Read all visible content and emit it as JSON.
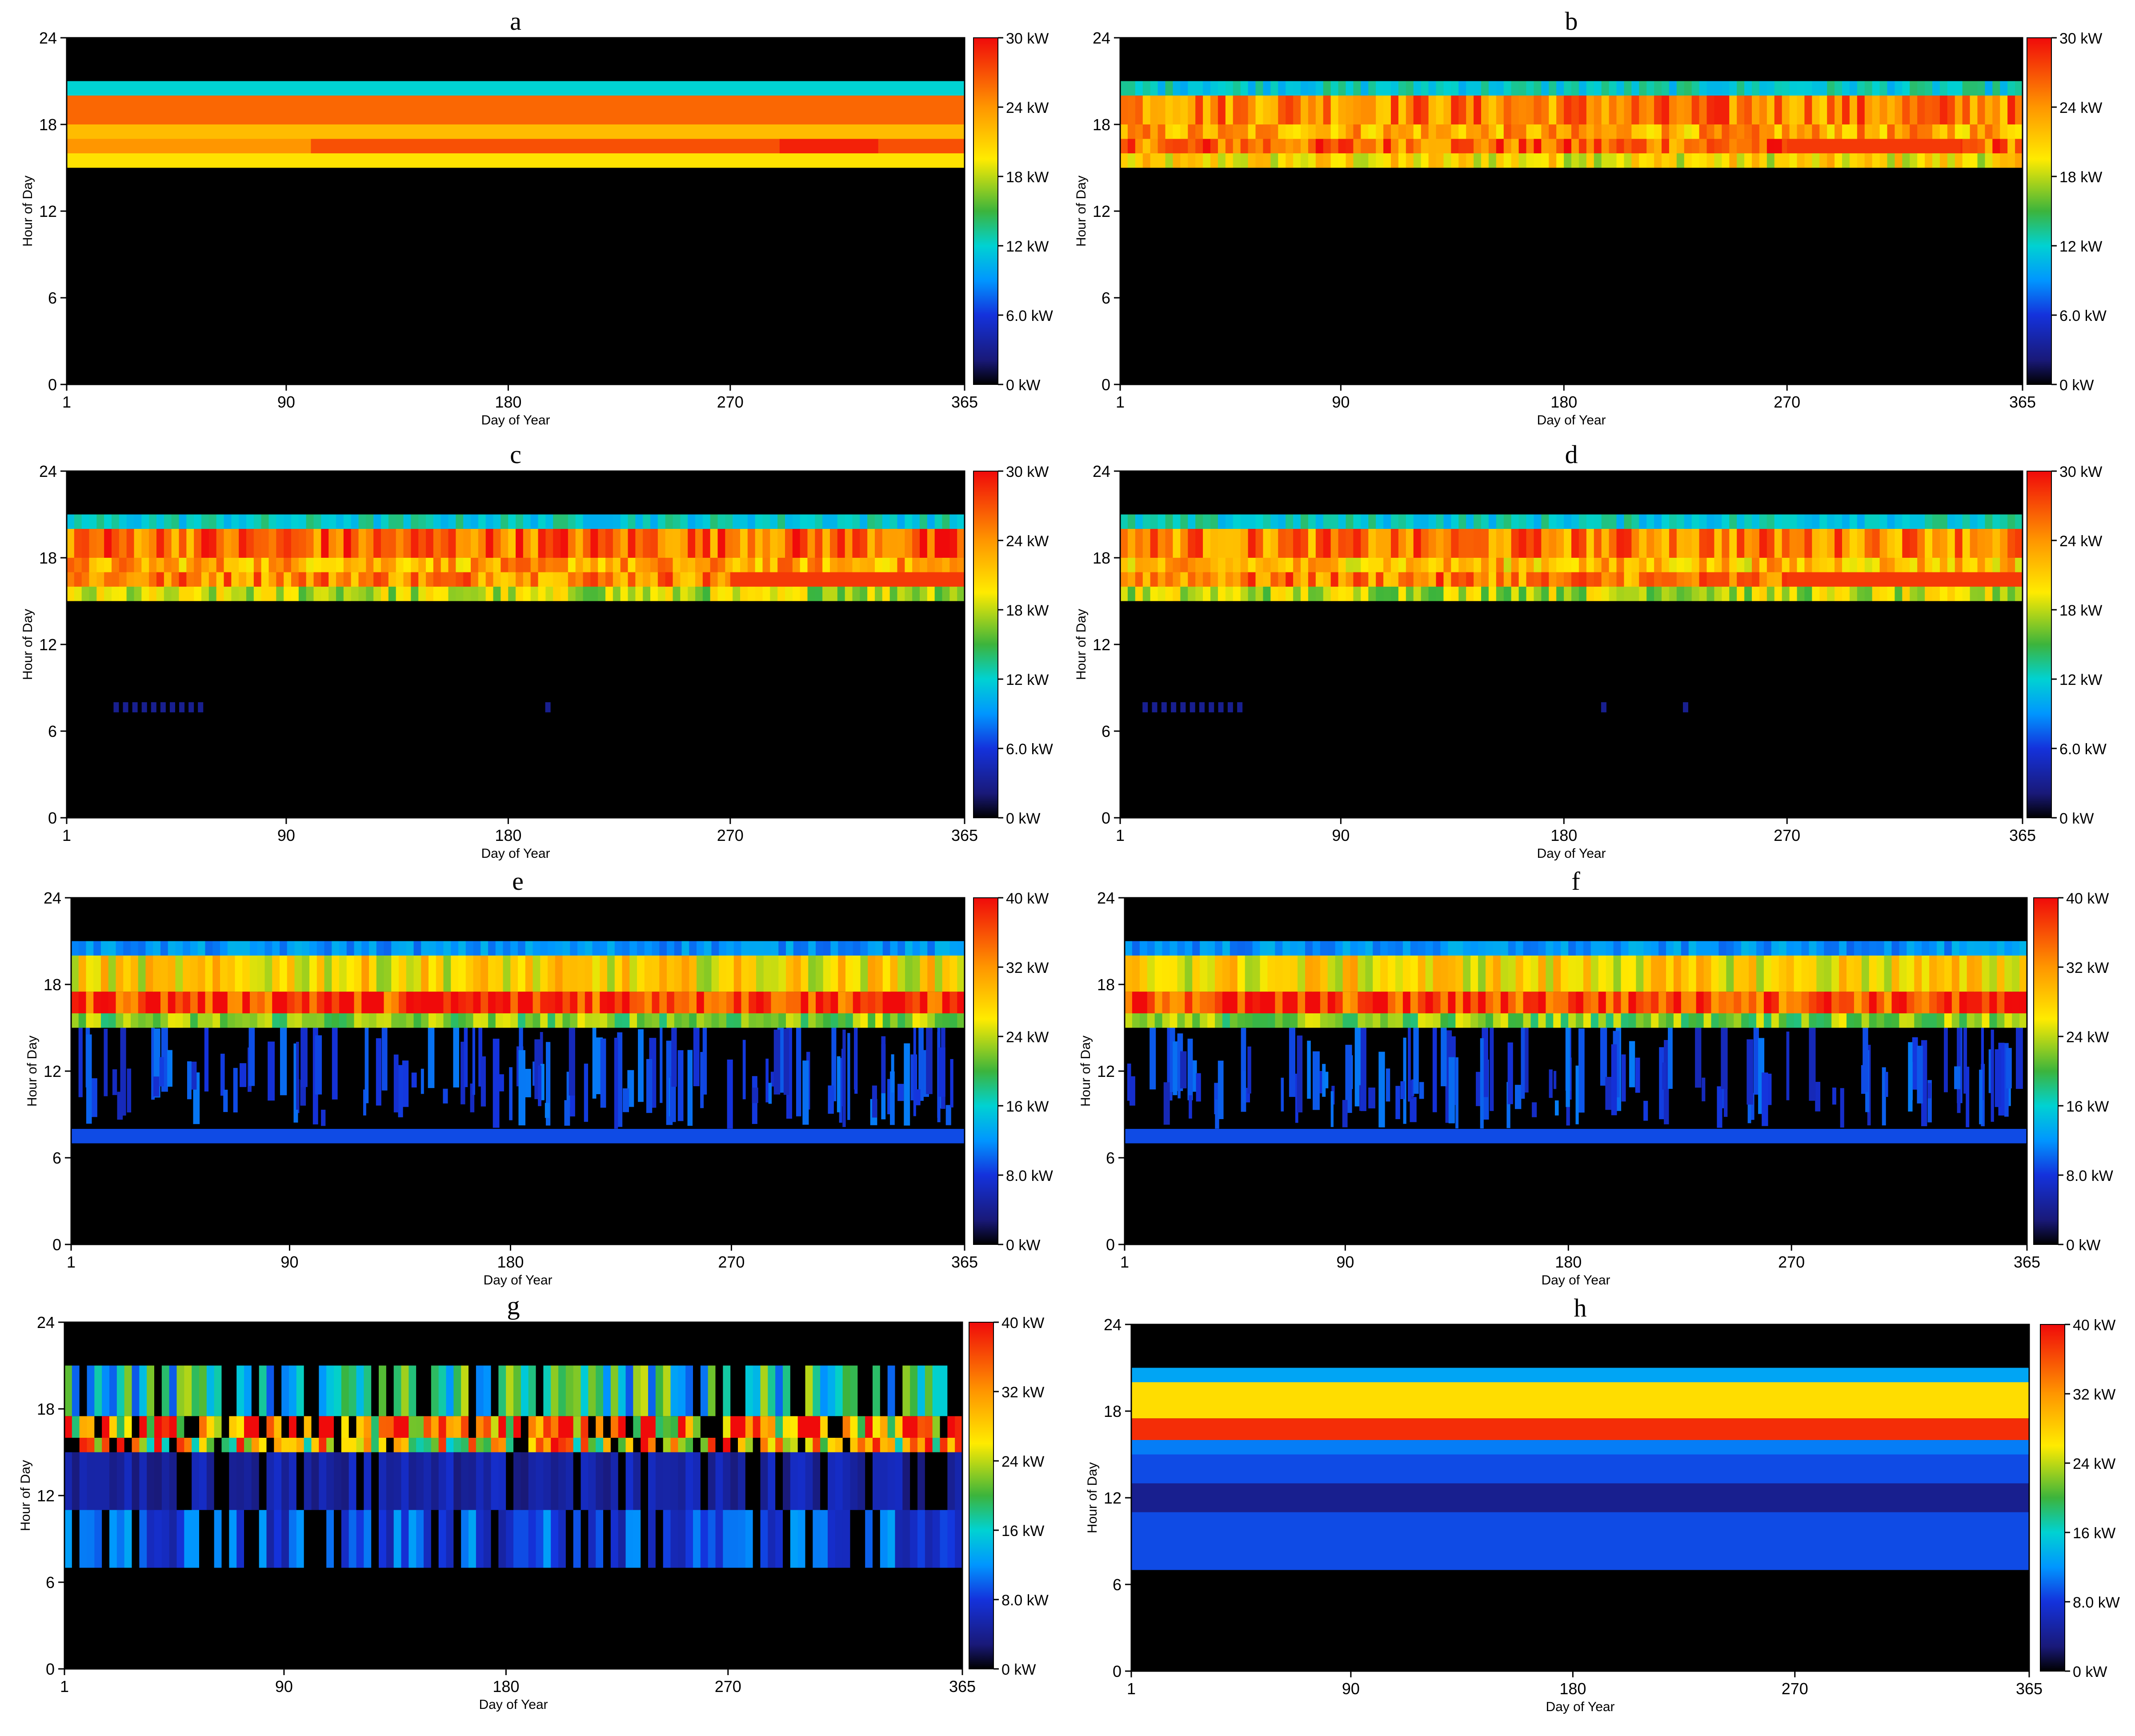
{
  "figure": {
    "panels": [
      "a",
      "b",
      "c",
      "d",
      "e",
      "f",
      "g",
      "h"
    ]
  },
  "chart_data": [
    {
      "id": "a",
      "type": "heatmap",
      "title": "a",
      "xlabel": "Day of Year",
      "ylabel": "Hour of Day",
      "xlim": [
        1,
        365
      ],
      "ylim": [
        0,
        24
      ],
      "xticks": [
        "1",
        "90",
        "180",
        "270",
        "365"
      ],
      "yticks": [
        "0",
        "6",
        "12",
        "18",
        "24"
      ],
      "colorbar": {
        "min": 0,
        "max": 30,
        "labels": [
          "0 kW",
          "6.0 kW",
          "12 kW",
          "18 kW",
          "24 kW",
          "30 kW"
        ]
      },
      "pattern": "steady",
      "bands": [
        {
          "from": 15,
          "to": 16,
          "value": 20
        },
        {
          "from": 16,
          "to": 17,
          "value": 24
        },
        {
          "from": 17,
          "to": 18,
          "value": 22
        },
        {
          "from": 18,
          "to": 20,
          "value": 26
        },
        {
          "from": 20,
          "to": 21,
          "value": 12
        }
      ],
      "segments": [
        {
          "dayStart": 100,
          "dayEnd": 365,
          "from": 16,
          "to": 17,
          "value": 27
        },
        {
          "dayStart": 290,
          "dayEnd": 330,
          "from": 16,
          "to": 17,
          "value": 29
        }
      ],
      "speckles": []
    },
    {
      "id": "b",
      "type": "heatmap",
      "title": "b",
      "xlabel": "Day of Year",
      "ylabel": "Hour of Day",
      "xlim": [
        1,
        365
      ],
      "ylim": [
        0,
        24
      ],
      "xticks": [
        "1",
        "90",
        "180",
        "270",
        "365"
      ],
      "yticks": [
        "0",
        "6",
        "12",
        "18",
        "24"
      ],
      "colorbar": {
        "min": 0,
        "max": 30,
        "labels": [
          "0 kW",
          "6.0 kW",
          "12 kW",
          "18 kW",
          "24 kW",
          "30 kW"
        ]
      },
      "pattern": "noisy",
      "bands": [
        {
          "from": 15,
          "to": 16,
          "value": 20
        },
        {
          "from": 16,
          "to": 17,
          "value": 26
        },
        {
          "from": 17,
          "to": 18,
          "value": 23
        },
        {
          "from": 18,
          "to": 20,
          "value": 25
        },
        {
          "from": 20,
          "to": 21,
          "value": 12
        }
      ],
      "segments": [
        {
          "dayStart": 270,
          "dayEnd": 340,
          "from": 16,
          "to": 17,
          "value": 28
        }
      ],
      "speckles": []
    },
    {
      "id": "c",
      "type": "heatmap",
      "title": "c",
      "xlabel": "Day of Year",
      "ylabel": "Hour of Day",
      "xlim": [
        1,
        365
      ],
      "ylim": [
        0,
        24
      ],
      "xticks": [
        "1",
        "90",
        "180",
        "270",
        "365"
      ],
      "yticks": [
        "0",
        "6",
        "12",
        "18",
        "24"
      ],
      "colorbar": {
        "min": 0,
        "max": 30,
        "labels": [
          "0 kW",
          "6.0 kW",
          "12 kW",
          "18 kW",
          "24 kW",
          "30 kW"
        ]
      },
      "pattern": "patchy",
      "bands": [
        {
          "from": 15,
          "to": 16,
          "value": 18
        },
        {
          "from": 16,
          "to": 17,
          "value": 25
        },
        {
          "from": 17,
          "to": 18,
          "value": 23
        },
        {
          "from": 18,
          "to": 20,
          "value": 26
        },
        {
          "from": 20,
          "to": 21,
          "value": 12
        }
      ],
      "segments": [
        {
          "dayStart": 270,
          "dayEnd": 365,
          "from": 16,
          "to": 17,
          "value": 28
        }
      ],
      "speckles": [
        {
          "dayStart": 20,
          "dayEnd": 58,
          "from": 7.3,
          "to": 8,
          "value": 3
        },
        {
          "dayStart": 195,
          "dayEnd": 200,
          "from": 7.3,
          "to": 8,
          "value": 3
        }
      ]
    },
    {
      "id": "d",
      "type": "heatmap",
      "title": "d",
      "xlabel": "Day of Year",
      "ylabel": "Hour of Day",
      "xlim": [
        1,
        365
      ],
      "ylim": [
        0,
        24
      ],
      "xticks": [
        "1",
        "90",
        "180",
        "270",
        "365"
      ],
      "yticks": [
        "0",
        "6",
        "12",
        "18",
        "24"
      ],
      "colorbar": {
        "min": 0,
        "max": 30,
        "labels": [
          "0 kW",
          "6.0 kW",
          "12 kW",
          "18 kW",
          "24 kW",
          "30 kW"
        ]
      },
      "pattern": "patchy-noisy",
      "bands": [
        {
          "from": 15,
          "to": 16,
          "value": 18
        },
        {
          "from": 16,
          "to": 17,
          "value": 25
        },
        {
          "from": 17,
          "to": 18,
          "value": 22
        },
        {
          "from": 18,
          "to": 20,
          "value": 25
        },
        {
          "from": 20,
          "to": 21,
          "value": 12
        }
      ],
      "segments": [
        {
          "dayStart": 270,
          "dayEnd": 365,
          "from": 16,
          "to": 17,
          "value": 28
        }
      ],
      "speckles": [
        {
          "dayStart": 10,
          "dayEnd": 52,
          "from": 7.3,
          "to": 8,
          "value": 3
        },
        {
          "dayStart": 195,
          "dayEnd": 200,
          "from": 7.3,
          "to": 8,
          "value": 3
        },
        {
          "dayStart": 228,
          "dayEnd": 230,
          "from": 7.3,
          "to": 8,
          "value": 3
        }
      ]
    },
    {
      "id": "e",
      "type": "heatmap",
      "title": "e",
      "xlabel": "Day of Year",
      "ylabel": "Hour of Day",
      "xlim": [
        1,
        365
      ],
      "ylim": [
        0,
        24
      ],
      "xticks": [
        "1",
        "90",
        "180",
        "270",
        "365"
      ],
      "yticks": [
        "0",
        "6",
        "12",
        "18",
        "24"
      ],
      "colorbar": {
        "min": 0,
        "max": 40,
        "labels": [
          "0 kW",
          "8.0 kW",
          "16 kW",
          "24 kW",
          "32 kW",
          "40 kW"
        ]
      },
      "pattern": "blue-scatter",
      "bands": [
        {
          "from": 15,
          "to": 16,
          "value": 22
        },
        {
          "from": 16,
          "to": 17.5,
          "value": 38
        },
        {
          "from": 17.5,
          "to": 20,
          "value": 27
        },
        {
          "from": 20,
          "to": 21,
          "value": 12
        }
      ],
      "segments": [],
      "speckles": [
        {
          "dayStart": 1,
          "dayEnd": 365,
          "from": 7,
          "to": 8,
          "value": 9
        }
      ]
    },
    {
      "id": "f",
      "type": "heatmap",
      "title": "f",
      "xlabel": "Day of Year",
      "ylabel": "Hour of Day",
      "xlim": [
        1,
        365
      ],
      "ylim": [
        0,
        24
      ],
      "xticks": [
        "1",
        "90",
        "180",
        "270",
        "365"
      ],
      "yticks": [
        "0",
        "6",
        "12",
        "18",
        "24"
      ],
      "colorbar": {
        "min": 0,
        "max": 40,
        "labels": [
          "0 kW",
          "8.0 kW",
          "16 kW",
          "24 kW",
          "32 kW",
          "40 kW"
        ]
      },
      "pattern": "blue-scatter-noisy",
      "bands": [
        {
          "from": 15,
          "to": 16,
          "value": 22
        },
        {
          "from": 16,
          "to": 17.5,
          "value": 37
        },
        {
          "from": 17.5,
          "to": 20,
          "value": 27
        },
        {
          "from": 20,
          "to": 21,
          "value": 12
        }
      ],
      "segments": [],
      "speckles": [
        {
          "dayStart": 1,
          "dayEnd": 365,
          "from": 7,
          "to": 8,
          "value": 9
        }
      ]
    },
    {
      "id": "g",
      "type": "heatmap",
      "title": "g",
      "xlabel": "Day of Year",
      "ylabel": "Hour of Day",
      "xlim": [
        1,
        365
      ],
      "ylim": [
        0,
        24
      ],
      "xticks": [
        "1",
        "90",
        "180",
        "270",
        "365"
      ],
      "yticks": [
        "0",
        "6",
        "12",
        "18",
        "24"
      ],
      "colorbar": {
        "min": 0,
        "max": 40,
        "labels": [
          "0 kW",
          "8.0 kW",
          "16 kW",
          "24 kW",
          "32 kW",
          "40 kW"
        ]
      },
      "pattern": "chaotic",
      "bands": [
        {
          "from": 7,
          "to": 11,
          "value": 9
        },
        {
          "from": 11,
          "to": 15,
          "value": 5
        },
        {
          "from": 15,
          "to": 16,
          "value": 28
        },
        {
          "from": 16,
          "to": 17.5,
          "value": 33
        },
        {
          "from": 17.5,
          "to": 21,
          "value": 17
        }
      ],
      "segments": [],
      "speckles": []
    },
    {
      "id": "h",
      "type": "heatmap",
      "title": "h",
      "xlabel": "Day of Year",
      "ylabel": "Hour of Day",
      "xlim": [
        1,
        365
      ],
      "ylim": [
        0,
        24
      ],
      "xticks": [
        "1",
        "90",
        "180",
        "270",
        "365"
      ],
      "yticks": [
        "0",
        "6",
        "12",
        "18",
        "24"
      ],
      "colorbar": {
        "min": 0,
        "max": 40,
        "labels": [
          "0 kW",
          "8.0 kW",
          "16 kW",
          "24 kW",
          "32 kW",
          "40 kW"
        ]
      },
      "pattern": "uniform",
      "bands": [
        {
          "from": 7,
          "to": 11,
          "value": 9
        },
        {
          "from": 11,
          "to": 13,
          "value": 4
        },
        {
          "from": 13,
          "to": 15,
          "value": 9
        },
        {
          "from": 15,
          "to": 16,
          "value": 11
        },
        {
          "from": 16,
          "to": 17.5,
          "value": 38
        },
        {
          "from": 17.5,
          "to": 20,
          "value": 27
        },
        {
          "from": 20,
          "to": 21,
          "value": 13
        }
      ],
      "segments": [],
      "speckles": []
    }
  ]
}
